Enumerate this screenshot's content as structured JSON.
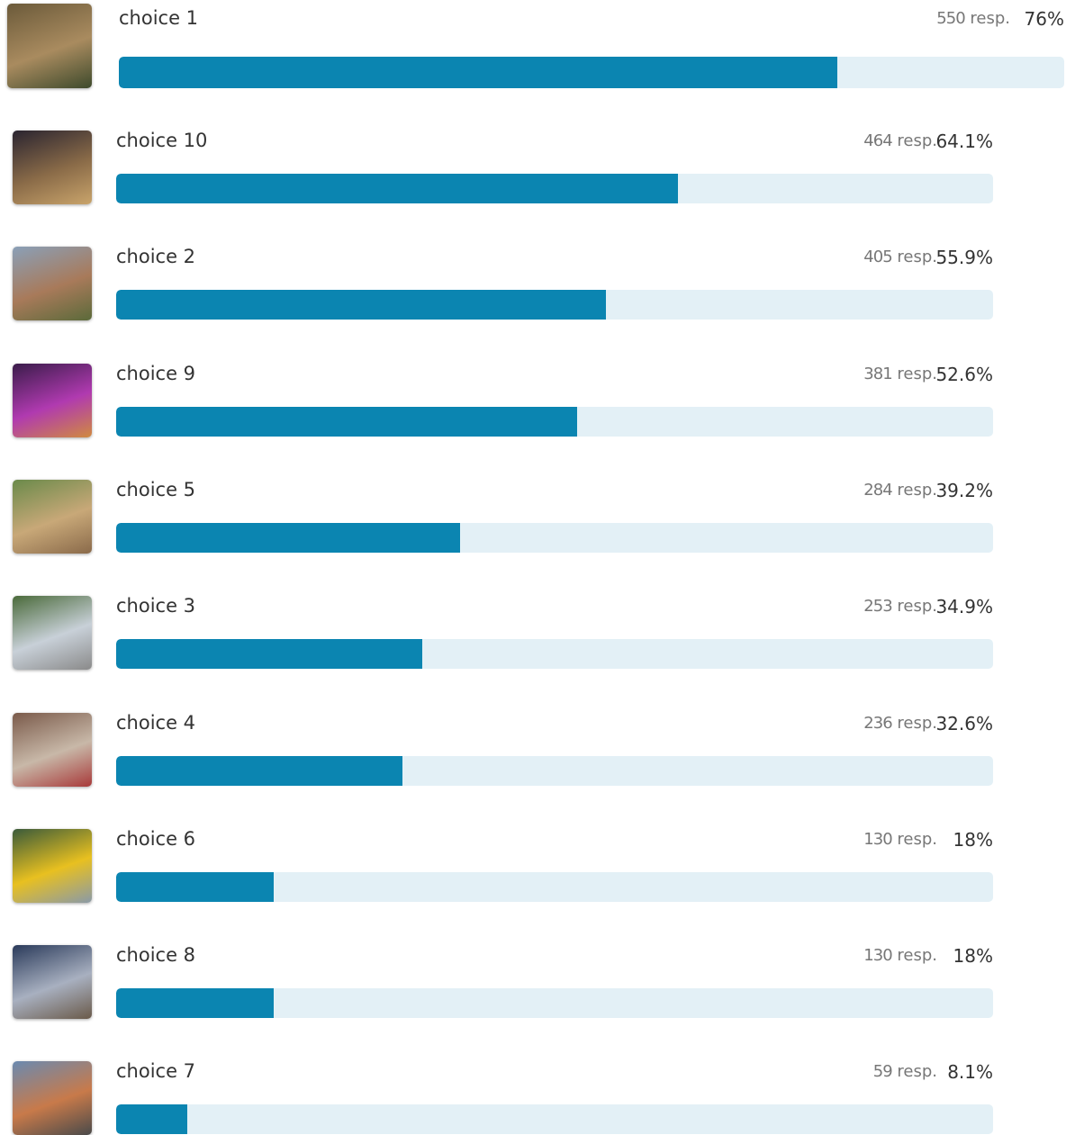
{
  "chart_data": {
    "type": "bar",
    "orientation": "horizontal",
    "color": "#0b85b1",
    "categories": [
      "choice 1",
      "choice 10",
      "choice 2",
      "choice 9",
      "choice 5",
      "choice 3",
      "choice 4",
      "choice 6",
      "choice 8",
      "choice 7"
    ],
    "values": [
      76,
      64.1,
      55.9,
      52.6,
      39.2,
      34.9,
      32.6,
      18,
      18,
      8.1
    ],
    "value_labels": [
      "76%",
      "64.1%",
      "55.9%",
      "52.6%",
      "39.2%",
      "34.9%",
      "32.6%",
      "18%",
      "18%",
      "8.1%"
    ],
    "responses": [
      550,
      464,
      405,
      381,
      284,
      253,
      236,
      130,
      130,
      59
    ],
    "response_unit": "resp.",
    "xlim": [
      0,
      100
    ]
  }
}
